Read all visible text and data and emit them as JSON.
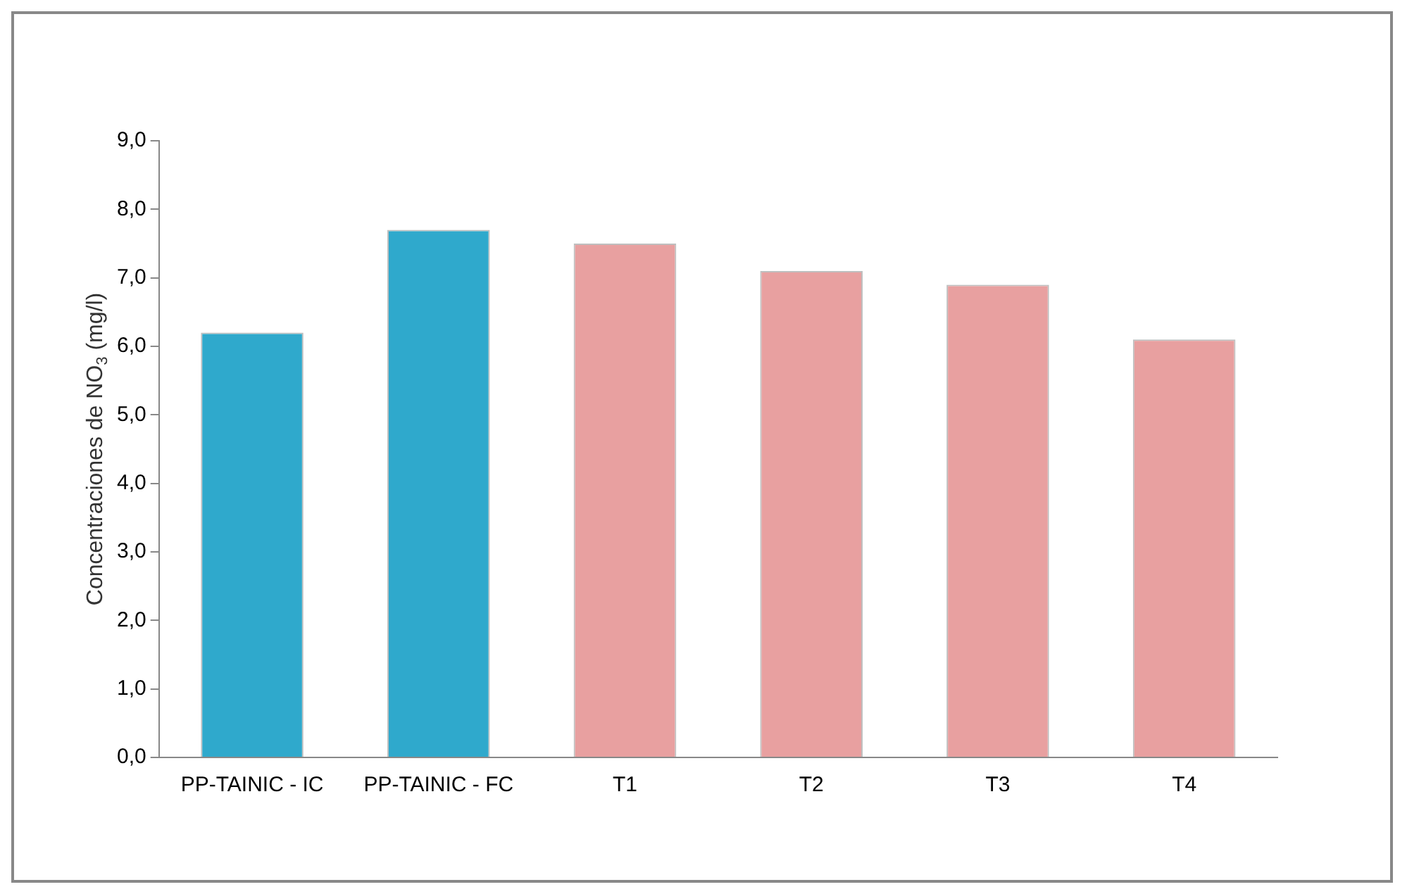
{
  "chart_data": {
    "type": "bar",
    "ylabel": "Concentraciones de NO$_{3}$ (mg/l)",
    "categories": [
      "PP-TAINIC - IC",
      "PP-TAINIC - FC",
      "T1",
      "T2",
      "T3",
      "T4"
    ],
    "values": [
      6.2,
      7.7,
      7.5,
      7.1,
      6.9,
      6.1
    ],
    "colors": [
      "#2fa9cc",
      "#2fa9cc",
      "#e8a0a0",
      "#e8a0a0",
      "#e8a0a0",
      "#e8a0a0"
    ],
    "ylim": [
      0,
      9
    ],
    "yticks": [
      {
        "value": 0,
        "label": "0,0"
      },
      {
        "value": 1,
        "label": "1,0"
      },
      {
        "value": 2,
        "label": "2,0"
      },
      {
        "value": 3,
        "label": "3,0"
      },
      {
        "value": 4,
        "label": "4,0"
      },
      {
        "value": 5,
        "label": "5,0"
      },
      {
        "value": 6,
        "label": "6,0"
      },
      {
        "value": 7,
        "label": "7,0"
      },
      {
        "value": 8,
        "label": "8,0"
      },
      {
        "value": 9,
        "label": "9,0"
      }
    ],
    "grid": false,
    "legend": false
  }
}
